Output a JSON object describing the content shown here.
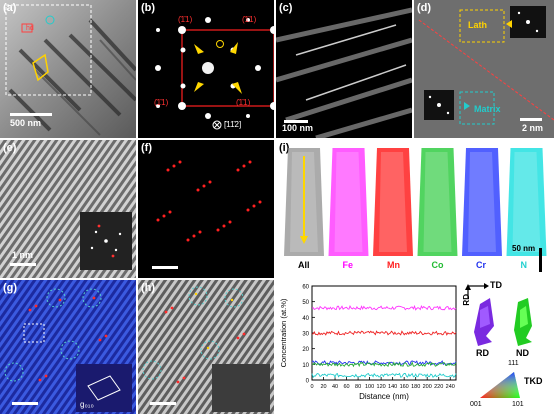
{
  "panel_labels": {
    "a": "(a)",
    "b": "(b)",
    "c": "(c)",
    "d": "(d)",
    "e": "(e)",
    "f": "(f)",
    "g": "(g)",
    "h": "(h)",
    "i": "(i)"
  },
  "panel_a": {
    "scale": "500 nm",
    "tag_hd": "hd"
  },
  "panel_b": {
    "spot_tl": "(̄1̄1)",
    "spot_tr": "(̄1̄1)",
    "spot_bl": "(̄1̄1)",
    "spot_br": "(̄1̄1)",
    "zone_axis": "[̄11̄2]"
  },
  "panel_c": {
    "scale": "100 nm"
  },
  "panel_d": {
    "lath": "Lath",
    "matrix": "Matrix",
    "scale": "2 nm"
  },
  "panel_e": {
    "scale": "1 nm"
  },
  "panel_g": {
    "g_label": "g₀₁₀"
  },
  "panel_i": {
    "elements": [
      "All",
      "Fe",
      "Mn",
      "Co",
      "Cr",
      "N"
    ],
    "element_colors": [
      "#888888",
      "#ff40ff",
      "#ff2020",
      "#33cc44",
      "#3344ff",
      "#22e0e0"
    ],
    "label_colors": [
      "#000000",
      "#ff00ff",
      "#ff2020",
      "#22bb33",
      "#2233ee",
      "#22d0d0"
    ],
    "scale": "50 nm",
    "rd": "RD",
    "td": "TD",
    "nd": "ND",
    "tkd": "TKD",
    "ipf_corners": {
      "c001": "001",
      "c101": "101",
      "c111": "111"
    }
  },
  "chart_data": {
    "type": "line",
    "xlabel": "Distance (nm)",
    "ylabel": "Concentration (at.%)",
    "xlim": [
      0,
      250
    ],
    "ylim": [
      0,
      60
    ],
    "xticks": [
      0,
      20,
      40,
      60,
      80,
      100,
      120,
      140,
      160,
      180,
      200,
      220,
      240
    ],
    "yticks": [
      0,
      10,
      20,
      30,
      40,
      50,
      60
    ],
    "series": [
      {
        "color": "#ff33ff",
        "mean": 46
      },
      {
        "color": "#ee2222",
        "mean": 30
      },
      {
        "color": "#2233ee",
        "mean": 11
      },
      {
        "color": "#22aa33",
        "mean": 10
      },
      {
        "color": "#22cccc",
        "mean": 3
      }
    ]
  }
}
